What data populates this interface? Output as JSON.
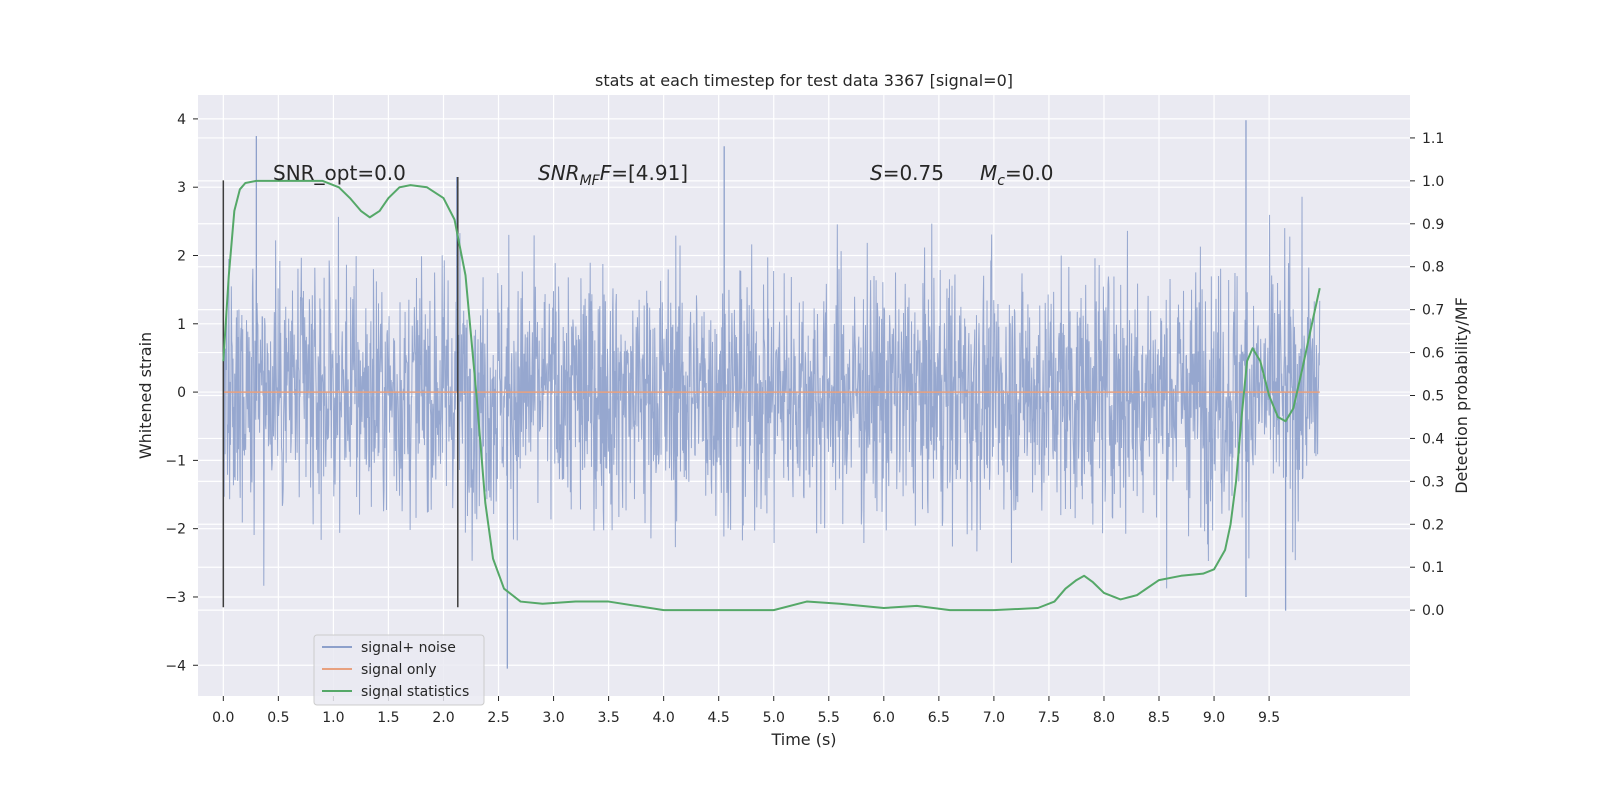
{
  "chart_data": {
    "type": "line",
    "title": "stats at each timestep for test data 3367 [signal=0]",
    "xlabel": "Time (s)",
    "ylabel": "Whitened strain",
    "y2label": "Detection probability/MF",
    "xlim": [
      -0.23,
      10.78
    ],
    "ylim": [
      -4.45,
      4.35
    ],
    "y2lim": [
      -0.2,
      1.2
    ],
    "x_ticks": [
      "0.0",
      "0.5",
      "1.0",
      "1.5",
      "2.0",
      "2.5",
      "3.0",
      "3.5",
      "4.0",
      "4.5",
      "5.0",
      "5.5",
      "6.0",
      "6.5",
      "7.0",
      "7.5",
      "8.0",
      "8.5",
      "9.0",
      "9.5"
    ],
    "y_ticks": [
      "4",
      "3",
      "2",
      "1",
      "0",
      "−1",
      "−2",
      "−3",
      "−4"
    ],
    "y2_ticks": [
      "1.1",
      "1.0",
      "0.9",
      "0.8",
      "0.7",
      "0.6",
      "0.5",
      "0.4",
      "0.3",
      "0.2",
      "0.1",
      "0.0"
    ],
    "grid": true,
    "legend_position": "lower-left",
    "time_range": [
      0.0,
      9.96
    ],
    "colors": {
      "plot_background": "#eaeaf2",
      "grid": "#ffffff",
      "noise": "#8da0cb",
      "signal": "#e8a17f",
      "stats": "#55a868",
      "vline": "#3d3d3d"
    },
    "annotations": {
      "snr_opt": "SNR_opt=0.0",
      "snr_mf_prefix": "SNR",
      "snr_mf_sub": "MF",
      "snr_mf_value": "=[4.91]",
      "s_symbol": "S",
      "s_value": "=0.75",
      "mc_symbol": "M",
      "mc_sub": "c",
      "mc_value": "=0.0"
    },
    "vertical_lines": [
      {
        "x": 0.0,
        "y_range": [
          -3.15,
          3.1
        ]
      },
      {
        "x": 2.13,
        "y_range": [
          -3.15,
          3.15
        ]
      }
    ],
    "series": [
      {
        "name": "signal+ noise",
        "color": "#8da0cb",
        "kind": "noise",
        "envelope_std": 0.95,
        "spikes": [
          {
            "x": 0.3,
            "y": 3.75
          },
          {
            "x": 2.12,
            "y": 3.15
          },
          {
            "x": 2.58,
            "y": -4.05
          },
          {
            "x": 4.55,
            "y": 3.6
          },
          {
            "x": 9.29,
            "y": 3.98
          },
          {
            "x": 9.29,
            "y": -3.0
          },
          {
            "x": 9.65,
            "y": -3.2
          }
        ]
      },
      {
        "name": "signal only",
        "color": "#e8a17f",
        "x": [
          0.0,
          9.96
        ],
        "y": [
          0.0,
          0.0
        ]
      },
      {
        "name": "signal statistics",
        "color": "#55a868",
        "axis": "right",
        "x": [
          0.0,
          0.05,
          0.1,
          0.15,
          0.2,
          0.3,
          0.5,
          0.7,
          0.9,
          1.05,
          1.15,
          1.25,
          1.33,
          1.42,
          1.5,
          1.6,
          1.7,
          1.85,
          2.0,
          2.1,
          2.2,
          2.3,
          2.38,
          2.45,
          2.55,
          2.7,
          2.9,
          3.2,
          3.5,
          4.0,
          4.5,
          5.0,
          5.3,
          5.6,
          6.0,
          6.3,
          6.6,
          7.0,
          7.4,
          7.55,
          7.65,
          7.75,
          7.82,
          7.9,
          8.0,
          8.15,
          8.3,
          8.5,
          8.7,
          8.9,
          9.0,
          9.1,
          9.15,
          9.2,
          9.25,
          9.3,
          9.35,
          9.42,
          9.5,
          9.58,
          9.65,
          9.72,
          9.8,
          9.9,
          9.96
        ],
        "y": [
          0.58,
          0.78,
          0.93,
          0.98,
          0.995,
          1.0,
          1.0,
          1.0,
          1.0,
          0.985,
          0.96,
          0.93,
          0.915,
          0.93,
          0.96,
          0.985,
          0.99,
          0.985,
          0.96,
          0.91,
          0.78,
          0.5,
          0.25,
          0.12,
          0.05,
          0.02,
          0.015,
          0.02,
          0.02,
          0.0,
          0.0,
          0.0,
          0.02,
          0.015,
          0.005,
          0.01,
          0.0,
          0.0,
          0.005,
          0.02,
          0.05,
          0.07,
          0.08,
          0.065,
          0.04,
          0.025,
          0.035,
          0.07,
          0.08,
          0.085,
          0.095,
          0.14,
          0.2,
          0.3,
          0.45,
          0.58,
          0.61,
          0.58,
          0.5,
          0.45,
          0.44,
          0.47,
          0.56,
          0.68,
          0.75
        ]
      }
    ]
  }
}
